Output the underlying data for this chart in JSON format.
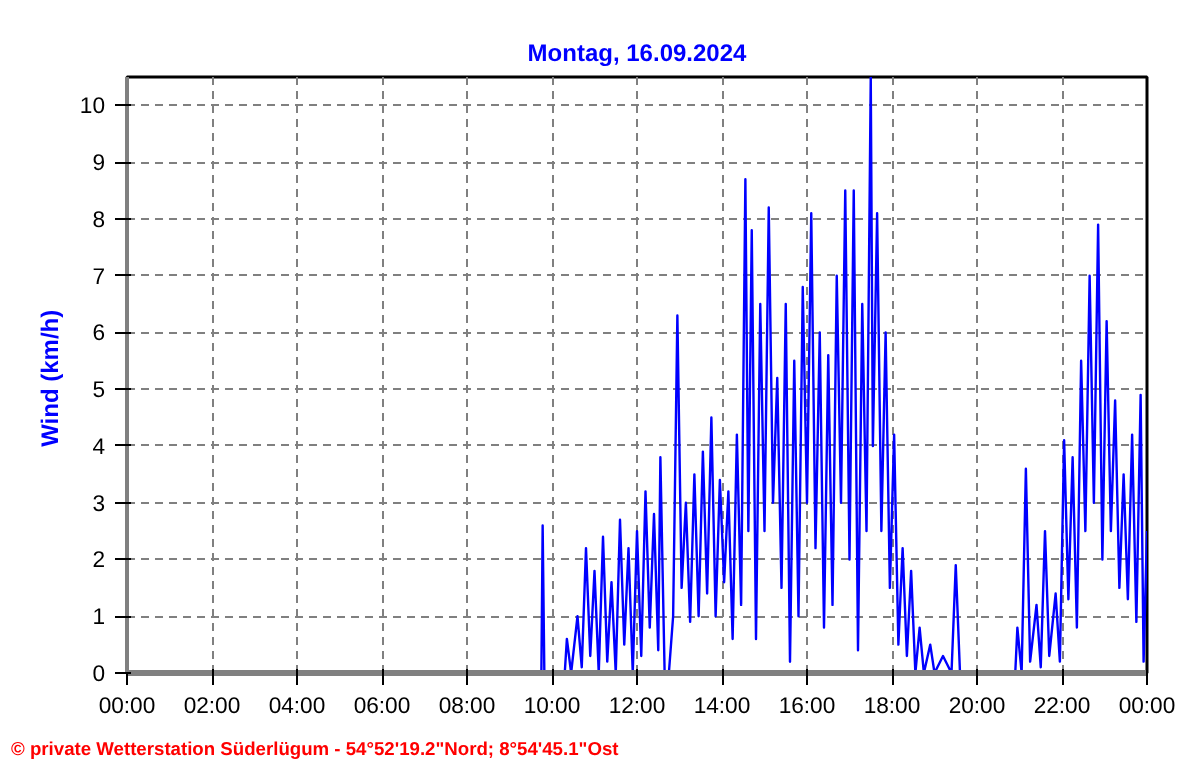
{
  "chart_data": {
    "type": "line",
    "title": "Montag, 16.09.2024",
    "ylabel": "Wind  (km/h)",
    "annotations": [
      "© private Wetterstation Süderlügum - 54°52'19.2\"Nord; 8°54'45.1\"Ost"
    ],
    "grid": true,
    "line_style": "solid",
    "marker": "none",
    "xlim": [
      0,
      24
    ],
    "ylim": [
      0,
      10.5
    ],
    "xticks": [
      {
        "value": 0,
        "label": "00:00"
      },
      {
        "value": 2,
        "label": "02:00"
      },
      {
        "value": 4,
        "label": "04:00"
      },
      {
        "value": 6,
        "label": "06:00"
      },
      {
        "value": 8,
        "label": "08:00"
      },
      {
        "value": 10,
        "label": "10:00"
      },
      {
        "value": 12,
        "label": "12:00"
      },
      {
        "value": 14,
        "label": "14:00"
      },
      {
        "value": 16,
        "label": "16:00"
      },
      {
        "value": 18,
        "label": "18:00"
      },
      {
        "value": 20,
        "label": "20:00"
      },
      {
        "value": 22,
        "label": "22:00"
      },
      {
        "value": 24,
        "label": "00:00"
      }
    ],
    "yticks": [
      0,
      1,
      2,
      3,
      4,
      5,
      6,
      7,
      8,
      9,
      10
    ],
    "series": [
      {
        "color": "#0000ff",
        "x": [
          0,
          9.75,
          9.78,
          9.82,
          10.3,
          10.35,
          10.45,
          10.6,
          10.7,
          10.8,
          10.9,
          11.0,
          11.1,
          11.2,
          11.3,
          11.4,
          11.5,
          11.6,
          11.7,
          11.8,
          11.9,
          12.0,
          12.1,
          12.2,
          12.3,
          12.4,
          12.5,
          12.55,
          12.65,
          12.75,
          12.85,
          12.95,
          13.05,
          13.15,
          13.25,
          13.35,
          13.45,
          13.55,
          13.65,
          13.75,
          13.85,
          13.95,
          14.05,
          14.15,
          14.25,
          14.35,
          14.45,
          14.55,
          14.62,
          14.7,
          14.8,
          14.9,
          15.0,
          15.1,
          15.2,
          15.3,
          15.4,
          15.5,
          15.6,
          15.7,
          15.8,
          15.9,
          16.0,
          16.1,
          16.2,
          16.3,
          16.4,
          16.5,
          16.6,
          16.7,
          16.8,
          16.9,
          17.0,
          17.1,
          17.2,
          17.3,
          17.4,
          17.5,
          17.55,
          17.65,
          17.75,
          17.85,
          17.95,
          18.05,
          18.15,
          18.25,
          18.35,
          18.45,
          18.55,
          18.65,
          18.75,
          18.9,
          19.0,
          19.2,
          19.4,
          19.5,
          19.6,
          20.9,
          20.95,
          21.05,
          21.15,
          21.25,
          21.4,
          21.5,
          21.6,
          21.7,
          21.85,
          21.95,
          22.05,
          22.15,
          22.25,
          22.35,
          22.45,
          22.55,
          22.65,
          22.75,
          22.85,
          22.95,
          23.05,
          23.15,
          23.25,
          23.35,
          23.45,
          23.55,
          23.65,
          23.75,
          23.85,
          23.92,
          24.0
        ],
        "values": [
          0,
          0,
          2.6,
          0,
          0,
          0.6,
          0,
          1.0,
          0.1,
          2.2,
          0.3,
          1.8,
          0,
          2.4,
          0.2,
          1.6,
          0,
          2.7,
          0.5,
          2.2,
          0,
          2.5,
          0.3,
          3.2,
          0.8,
          2.8,
          0.4,
          3.8,
          0,
          0,
          1.0,
          6.3,
          1.5,
          3.0,
          0.9,
          3.5,
          1.0,
          3.9,
          1.4,
          4.5,
          1.0,
          3.4,
          1.6,
          3.2,
          0.6,
          4.2,
          1.2,
          8.7,
          2.5,
          7.8,
          0.6,
          6.5,
          2.5,
          8.2,
          3.0,
          5.2,
          1.5,
          6.5,
          0.2,
          5.5,
          1.0,
          6.8,
          3.0,
          8.1,
          2.2,
          6.0,
          0.8,
          5.6,
          1.2,
          7.0,
          3.0,
          8.5,
          2.0,
          8.5,
          0.4,
          6.5,
          2.5,
          10.5,
          4.0,
          8.1,
          2.5,
          6.0,
          1.5,
          4.2,
          0.5,
          2.2,
          0.3,
          1.8,
          0,
          0.8,
          0,
          0.5,
          0,
          0.3,
          0,
          1.9,
          0,
          0,
          0.8,
          0,
          3.6,
          0.2,
          1.2,
          0.1,
          2.5,
          0.3,
          1.4,
          0.2,
          4.1,
          1.3,
          3.8,
          0.8,
          5.5,
          2.5,
          7.0,
          3.0,
          7.9,
          2.0,
          6.2,
          2.5,
          4.8,
          1.5,
          3.5,
          1.3,
          4.2,
          0.9,
          4.9,
          0.2,
          2.5
        ]
      }
    ]
  }
}
